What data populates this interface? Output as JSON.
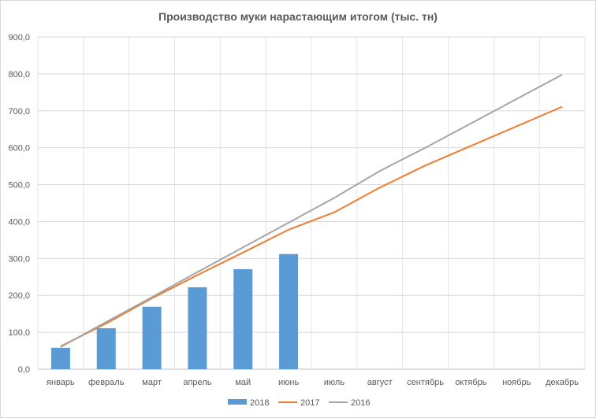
{
  "chart_data": {
    "type": "bar",
    "title": "Производство муки нарастающим итогом (тыс. тн)",
    "xlabel": "",
    "ylabel": "",
    "categories": [
      "январь",
      "февраль",
      "март",
      "апрель",
      "май",
      "июнь",
      "июль",
      "август",
      "сентябрь",
      "октябрь",
      "ноябрь",
      "декабрь"
    ],
    "ylim": [
      0,
      900
    ],
    "yticks": [
      "0,0",
      "100,0",
      "200,0",
      "300,0",
      "400,0",
      "500,0",
      "600,0",
      "700,0",
      "800,0",
      "900,0"
    ],
    "grid": true,
    "legend_position": "bottom",
    "series": [
      {
        "name": "2018",
        "type": "bar",
        "color": "#5b9bd5",
        "values": [
          58,
          111,
          169,
          222,
          271,
          312,
          null,
          null,
          null,
          null,
          null,
          null
        ]
      },
      {
        "name": "2017",
        "type": "line",
        "color": "#ed7d31",
        "values": [
          62,
          124,
          192,
          255,
          316,
          378,
          425,
          492,
          552,
          605,
          658,
          711
        ]
      },
      {
        "name": "2016",
        "type": "line",
        "color": "#a5a5a5",
        "values": [
          60,
          128,
          195,
          263,
          330,
          397,
          464,
          537,
          600,
          666,
          732,
          798
        ]
      }
    ]
  }
}
